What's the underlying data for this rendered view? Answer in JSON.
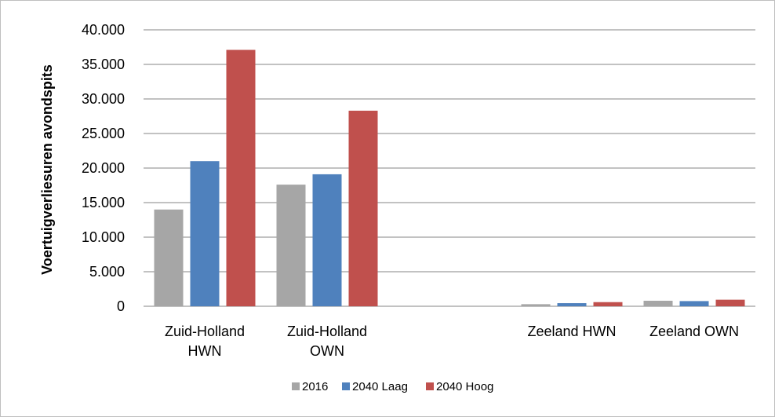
{
  "chart_data": {
    "type": "bar",
    "title": "",
    "xlabel": "",
    "ylabel": "Voertuigverliesuren avondspits",
    "ylim": [
      0,
      40000
    ],
    "yticks": [
      0,
      5000,
      10000,
      15000,
      20000,
      25000,
      30000,
      35000,
      40000
    ],
    "ytick_labels": [
      "0",
      "5.000",
      "10.000",
      "15.000",
      "20.000",
      "25.000",
      "30.000",
      "35.000",
      "40.000"
    ],
    "categories": [
      [
        "Zuid-Holland",
        "HWN"
      ],
      [
        "Zuid-Holland",
        "OWN"
      ],
      [
        ""
      ],
      [
        "Zeeland HWN"
      ],
      [
        "Zeeland OWN"
      ]
    ],
    "series": [
      {
        "name": "2016",
        "color": "#a6a6a6",
        "values": [
          14000,
          17600,
          0,
          300,
          800
        ]
      },
      {
        "name": "2040 Laag",
        "color": "#4f81bd",
        "values": [
          21000,
          19100,
          0,
          450,
          750
        ]
      },
      {
        "name": "2040 Hoog",
        "color": "#c0504d",
        "values": [
          37100,
          28300,
          0,
          600,
          950
        ]
      }
    ],
    "grid": true,
    "legend_position": "bottom"
  }
}
